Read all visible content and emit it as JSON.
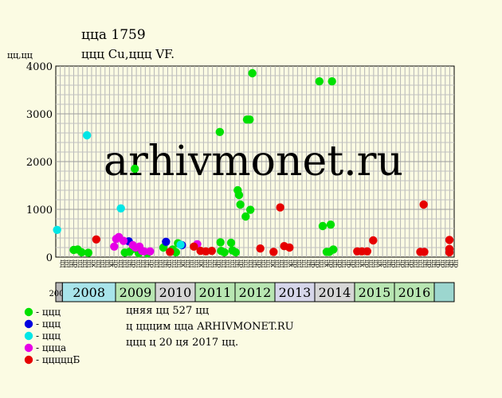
{
  "chart_data": {
    "type": "scatter",
    "title": "ццa 1759",
    "subtitle": "ццц Cu,ццц VF.",
    "ylabel": "цц,цц",
    "ylim": [
      0,
      4000
    ],
    "yticks": [
      0,
      1000,
      2000,
      3000,
      4000
    ],
    "grid": true,
    "watermark": "arhivmonet.ru",
    "x_start_year": 2007,
    "x_columns": [
      "цц",
      "цц",
      "цц",
      "цр",
      "цц",
      "цц",
      "цц",
      "цк",
      "цц",
      "цц",
      "цц",
      "цк",
      "цр",
      "цц",
      "цц",
      "цц",
      "цр",
      "цц",
      "цц",
      "цц",
      "цр",
      "цц",
      "цц",
      "цц",
      "цр",
      "цц",
      "цц",
      "цк",
      "цц",
      "цц",
      "цц",
      "цк",
      "цц",
      "цц",
      "цц",
      "цр",
      "цц",
      "цц",
      "цц",
      "цц",
      "цр",
      "цц",
      "цц",
      "цц",
      "цр",
      "цц",
      "цц",
      "цк",
      "цц",
      "цц",
      "цц",
      "цк",
      "цр",
      "цц",
      "цц",
      "цц",
      "цр",
      "цр",
      "цц",
      "цк",
      "цр",
      "цц",
      "цр",
      "цц",
      "цр",
      "цр",
      "цц",
      "цк",
      "цр",
      "цц",
      "цц",
      "цк",
      "цр",
      "цц",
      "цр",
      "цц",
      "цр",
      "цц",
      "цр",
      "цц",
      "цц",
      "цц",
      "цр",
      "цц",
      "цр",
      "цр",
      "цц",
      "цр",
      "цр"
    ],
    "years": [
      {
        "label": "2007",
        "start": 0,
        "end": 1,
        "color": "#b9b9b9"
      },
      {
        "label": "2008",
        "start": 1,
        "end": 9,
        "color": "#a8e4ea"
      },
      {
        "label": "2009",
        "start": 9,
        "end": 15,
        "color": "#b8e6b2"
      },
      {
        "label": "2010",
        "start": 15,
        "end": 21,
        "color": "#d6d6d6"
      },
      {
        "label": "2011",
        "start": 21,
        "end": 27,
        "color": "#b8e6b2"
      },
      {
        "label": "2012",
        "start": 27,
        "end": 33,
        "color": "#b8e6b2"
      },
      {
        "label": "2013",
        "start": 33,
        "end": 39,
        "color": "#d6d6ea"
      },
      {
        "label": "2014",
        "start": 39,
        "end": 45,
        "color": "#d6d6d6"
      },
      {
        "label": "2015",
        "start": 45,
        "end": 51,
        "color": "#b8e6b2"
      },
      {
        "label": "2016",
        "start": 51,
        "end": 57,
        "color": "#b8e6b2"
      },
      {
        "label": "",
        "start": 57,
        "end": 60,
        "color": "#9cd6cf"
      }
    ],
    "x_max": 60,
    "series": [
      {
        "name": "- ццц",
        "color": "#00e000",
        "points": [
          [
            2.7,
            150
          ],
          [
            3.3,
            160
          ],
          [
            3.9,
            100
          ],
          [
            4.9,
            90
          ],
          [
            10.4,
            95
          ],
          [
            11.1,
            110
          ],
          [
            11.6,
            170
          ],
          [
            11.9,
            1850
          ],
          [
            12.5,
            80
          ],
          [
            13.8,
            80
          ],
          [
            16.2,
            200
          ],
          [
            17.6,
            160
          ],
          [
            18.1,
            100
          ],
          [
            18.4,
            290
          ],
          [
            24.7,
            2620
          ],
          [
            24.8,
            310
          ],
          [
            24.9,
            130
          ],
          [
            25.4,
            100
          ],
          [
            26.4,
            300
          ],
          [
            26.6,
            140
          ],
          [
            27.1,
            100
          ],
          [
            27.4,
            1400
          ],
          [
            27.6,
            1300
          ],
          [
            27.8,
            1100
          ],
          [
            28.6,
            850
          ],
          [
            28.8,
            2880
          ],
          [
            29.2,
            2880
          ],
          [
            29.3,
            990
          ],
          [
            29.6,
            3850
          ],
          [
            39.7,
            3680
          ],
          [
            40.2,
            650
          ],
          [
            40.8,
            110
          ],
          [
            41.2,
            110
          ],
          [
            41.4,
            680
          ],
          [
            41.6,
            3680
          ],
          [
            41.8,
            160
          ]
        ]
      },
      {
        "name": "- ццц",
        "color": "#0000e0",
        "points": [
          [
            11.0,
            330
          ],
          [
            16.6,
            320
          ],
          [
            19.0,
            250
          ]
        ]
      },
      {
        "name": "- ццц",
        "color": "#00e6e6",
        "points": [
          [
            0.2,
            570
          ],
          [
            4.7,
            2550
          ],
          [
            9.8,
            1020
          ],
          [
            18.8,
            260
          ]
        ]
      },
      {
        "name": "- цццa",
        "color": "#e600e6",
        "points": [
          [
            8.8,
            220
          ],
          [
            9.1,
            380
          ],
          [
            9.5,
            420
          ],
          [
            10.2,
            340
          ],
          [
            11.6,
            250
          ],
          [
            12.0,
            200
          ],
          [
            12.6,
            220
          ],
          [
            13.0,
            130
          ],
          [
            13.3,
            120
          ],
          [
            14.2,
            120
          ],
          [
            21.3,
            270
          ]
        ]
      },
      {
        "name": "- цццццБ",
        "color": "#e60000",
        "points": [
          [
            6.1,
            370
          ],
          [
            17.2,
            110
          ],
          [
            20.8,
            220
          ],
          [
            21.8,
            130
          ],
          [
            22.6,
            120
          ],
          [
            23.5,
            130
          ],
          [
            30.8,
            180
          ],
          [
            32.8,
            110
          ],
          [
            33.8,
            1040
          ],
          [
            34.4,
            230
          ],
          [
            35.2,
            200
          ],
          [
            45.4,
            120
          ],
          [
            46.1,
            120
          ],
          [
            46.9,
            120
          ],
          [
            47.8,
            350
          ],
          [
            54.9,
            110
          ],
          [
            55.4,
            1100
          ],
          [
            55.5,
            110
          ],
          [
            60.1,
            170
          ],
          [
            60.3,
            360
          ],
          [
            61.4,
            100
          ]
        ]
      }
    ]
  },
  "notes": {
    "line1": "цняя цц 527 цц",
    "line2": "ц цццим ццa ARHIVMONET.RU",
    "line3": "ццц ц 20 ця 2017 цц."
  }
}
